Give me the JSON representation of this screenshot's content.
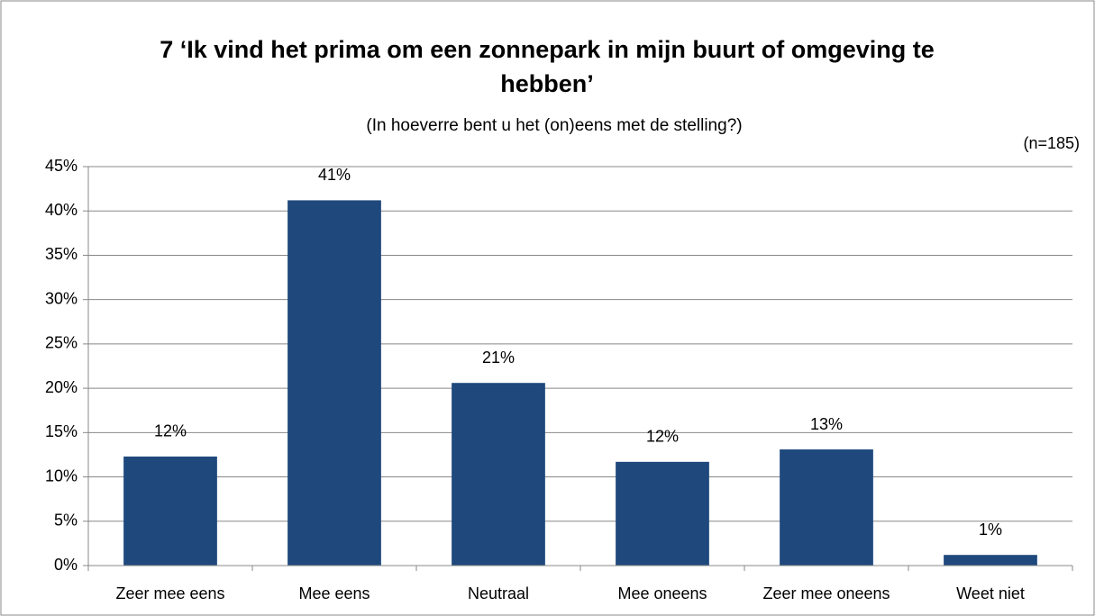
{
  "chart_data": {
    "type": "bar",
    "title": "7 ‘Ik vind het prima om een zonnepark in mijn buurt of omgeving te hebben’",
    "subtitle": "(In hoeverre bent u het (on)eens met de stelling?)",
    "annotation": "(n=185)",
    "categories": [
      "Zeer mee eens",
      "Mee eens",
      "Neutraal",
      "Mee oneens",
      "Zeer mee oneens",
      "Weet niet"
    ],
    "values": [
      12.3,
      41.2,
      20.6,
      11.7,
      13.1,
      1.2
    ],
    "value_labels": [
      "12%",
      "41%",
      "21%",
      "12%",
      "13%",
      "1%"
    ],
    "color": "#1f497d",
    "ylim": [
      0,
      45
    ],
    "yticks": [
      {
        "value": 0,
        "label": "0%"
      },
      {
        "value": 5,
        "label": "5%"
      },
      {
        "value": 10,
        "label": "10%"
      },
      {
        "value": 15,
        "label": "15%"
      },
      {
        "value": 20,
        "label": "20%"
      },
      {
        "value": 25,
        "label": "25%"
      },
      {
        "value": 30,
        "label": "30%"
      },
      {
        "value": 35,
        "label": "35%"
      },
      {
        "value": 40,
        "label": "40%"
      },
      {
        "value": 45,
        "label": "45%"
      }
    ],
    "grid": true
  }
}
